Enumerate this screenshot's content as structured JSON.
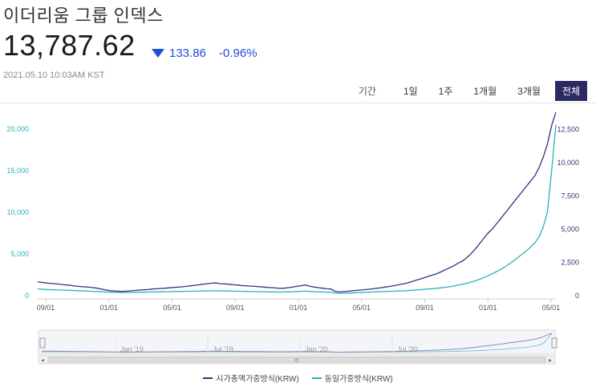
{
  "header": {
    "title": "이더리움 그룹 인덱스",
    "price": "13,787.62",
    "change_value": "133.86",
    "change_percent": "-0.96%",
    "timestamp": "2021.05.10 10:03AM KST",
    "change_color": "#1f4fd6"
  },
  "ranges": {
    "label": "기간",
    "buttons": [
      "1일",
      "1주",
      "1개월",
      "3개월",
      "전체"
    ],
    "active_index": 4
  },
  "colors": {
    "series_a": "#3b2f7e",
    "series_b": "#2ab3b8",
    "active_button": "#2b2a63"
  },
  "chart_data": {
    "type": "line",
    "x_tick_labels": [
      "09/01",
      "01/01",
      "05/01",
      "09/01",
      "01/01",
      "05/01",
      "09/01",
      "01/01",
      "05/01"
    ],
    "left_axis": {
      "ticks": [
        0,
        5000,
        10000,
        15000,
        20000
      ],
      "tick_labels": [
        "0",
        "5,000",
        "10,000",
        "15,000",
        "20,000"
      ],
      "range": [
        0,
        22000
      ]
    },
    "right_axis": {
      "ticks": [
        0,
        2500,
        5000,
        7500,
        10000,
        12500
      ],
      "tick_labels": [
        "0",
        "2,500",
        "5,000",
        "7,500",
        "10,000",
        "12,500"
      ],
      "range": [
        0,
        13800
      ]
    },
    "navigator_labels": [
      "Jan '19",
      "Jul '19",
      "Jan '20",
      "Jul '20"
    ],
    "series": [
      {
        "name": "시가총액가중방식(KRW)",
        "axis": "right",
        "values": [
          1050,
          1000,
          950,
          930,
          900,
          870,
          820,
          800,
          760,
          720,
          690,
          660,
          640,
          600,
          560,
          500,
          430,
          380,
          350,
          330,
          320,
          340,
          360,
          400,
          420,
          440,
          460,
          500,
          520,
          540,
          560,
          590,
          620,
          640,
          660,
          700,
          740,
          780,
          820,
          860,
          900,
          940,
          950,
          900,
          880,
          860,
          820,
          800,
          760,
          740,
          720,
          700,
          680,
          650,
          620,
          600,
          580,
          540,
          560,
          600,
          640,
          700,
          750,
          800,
          720,
          650,
          600,
          560,
          520,
          500,
          320,
          280,
          300,
          330,
          360,
          400,
          420,
          450,
          480,
          520,
          560,
          600,
          650,
          700,
          760,
          820,
          880,
          950,
          1050,
          1150,
          1250,
          1350,
          1450,
          1550,
          1650,
          1800,
          1950,
          2100,
          2250,
          2450,
          2600,
          2850,
          3150,
          3500,
          3900,
          4300,
          4700,
          5000,
          5400,
          5800,
          6200,
          6600,
          7000,
          7400,
          7800,
          8200,
          8600,
          9000,
          9600,
          10400,
          11400,
          12800,
          13780
        ]
      },
      {
        "name": "동일가중방식(KRW)",
        "axis": "left",
        "values": [
          800,
          770,
          740,
          720,
          700,
          680,
          660,
          640,
          620,
          600,
          580,
          560,
          540,
          520,
          500,
          480,
          440,
          410,
          390,
          380,
          375,
          380,
          390,
          400,
          410,
          420,
          430,
          440,
          450,
          460,
          470,
          480,
          490,
          500,
          510,
          520,
          530,
          540,
          550,
          560,
          570,
          580,
          585,
          570,
          560,
          550,
          540,
          530,
          520,
          510,
          500,
          490,
          480,
          470,
          460,
          450,
          440,
          430,
          440,
          460,
          480,
          500,
          520,
          540,
          510,
          480,
          460,
          440,
          420,
          400,
          300,
          280,
          300,
          320,
          340,
          360,
          380,
          400,
          420,
          440,
          460,
          480,
          500,
          520,
          540,
          560,
          580,
          600,
          640,
          680,
          720,
          760,
          800,
          840,
          880,
          940,
          1000,
          1080,
          1160,
          1260,
          1360,
          1480,
          1620,
          1780,
          1960,
          2160,
          2380,
          2620,
          2880,
          3150,
          3450,
          3800,
          4150,
          4550,
          4950,
          5350,
          5800,
          6300,
          7000,
          8200,
          10000,
          15000,
          20500
        ]
      }
    ]
  }
}
